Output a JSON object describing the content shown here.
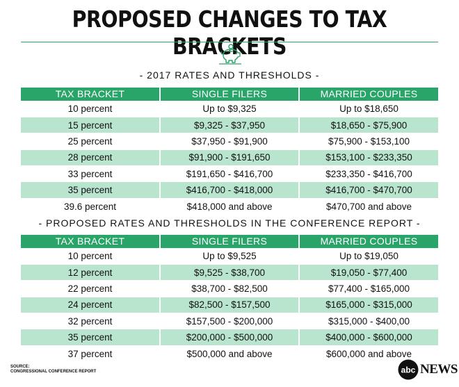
{
  "title": "PROPOSED CHANGES TO TAX BRACKETS",
  "icon": "piggy-bank-icon",
  "colors": {
    "accent": "#2aa56a",
    "row_shade": "#b9e5cf"
  },
  "chart_data": [
    {
      "type": "table",
      "title": "- 2017 RATES AND THRESHOLDS -",
      "columns": [
        "TAX BRACKET",
        "SINGLE FILERS",
        "MARRIED COUPLES"
      ],
      "rows": [
        [
          "10 percent",
          "Up to $9,325",
          "Up to $18,650"
        ],
        [
          "15 percent",
          "$9,325 - $37,950",
          "$18,650 - $75,900"
        ],
        [
          "25 percent",
          "$37,950 - $91,900",
          "$75,900 - $153,100"
        ],
        [
          "28 percent",
          "$91,900 - $191,650",
          "$153,100 - $233,350"
        ],
        [
          "33 percent",
          "$191,650 - $416,700",
          "$233,350 - $416,700"
        ],
        [
          "35 percent",
          "$416,700 - $418,000",
          "$416,700 - $470,700"
        ],
        [
          "39.6 percent",
          "$418,000 and above",
          "$470,700 and above"
        ]
      ]
    },
    {
      "type": "table",
      "title": "- PROPOSED RATES AND THRESHOLDS IN THE CONFERENCE REPORT -",
      "columns": [
        "TAX BRACKET",
        "SINGLE FILERS",
        "MARRIED COUPLES"
      ],
      "rows": [
        [
          "10 percent",
          "Up to $9,525",
          "Up to $19,050"
        ],
        [
          "12 percent",
          "$9,525 - $38,700",
          "$19,050 - $77,400"
        ],
        [
          "22 percent",
          "$38,700 - $82,500",
          "$77,400 - $165,000"
        ],
        [
          "24 percent",
          "$82,500 - $157,500",
          "$165,000 - $315,000"
        ],
        [
          "32 percent",
          "$157,500 - $200,000",
          "$315,000 - $400,00"
        ],
        [
          "35 percent",
          "$200,000 - $500,000",
          "$400,000 - $600,000"
        ],
        [
          "37 percent",
          "$500,000 and above",
          "$600,000 and above"
        ]
      ]
    }
  ],
  "source": {
    "label": "SOURCE:",
    "text": "CONGRESSIONAL CONFERENCE REPORT"
  },
  "brand": {
    "logo": "abc",
    "news": "NEWS"
  }
}
